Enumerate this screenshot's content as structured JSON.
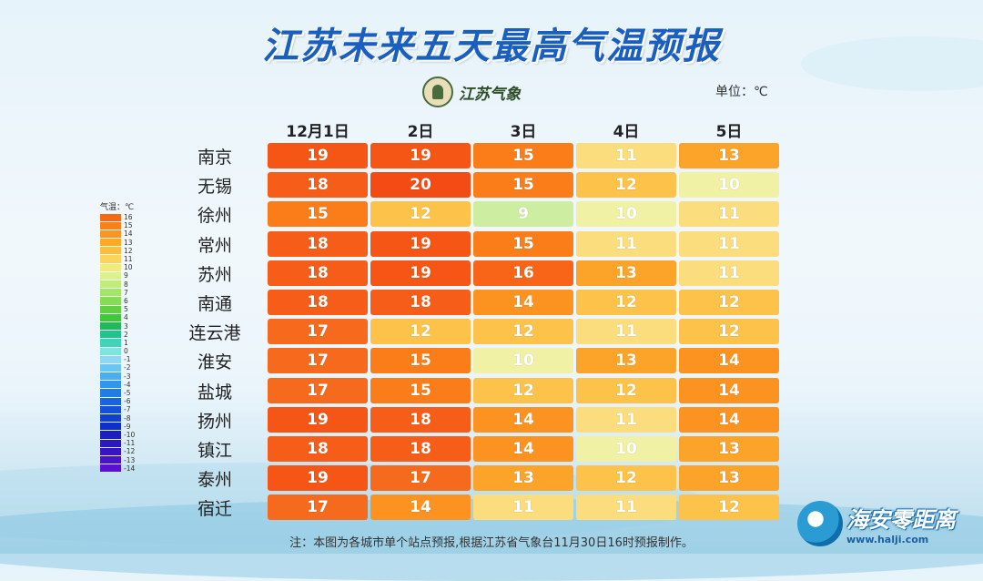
{
  "title": "江苏未来五天最高气温预报",
  "logo_text": "江苏气象",
  "unit_label": "单位：℃",
  "columns": [
    "12月1日",
    "2日",
    "3日",
    "4日",
    "5日"
  ],
  "rows": [
    {
      "city": "南京",
      "values": [
        19,
        19,
        15,
        11,
        13
      ]
    },
    {
      "city": "无锡",
      "values": [
        18,
        20,
        15,
        12,
        10
      ]
    },
    {
      "city": "徐州",
      "values": [
        15,
        12,
        9,
        10,
        11
      ]
    },
    {
      "city": "常州",
      "values": [
        18,
        19,
        15,
        11,
        11
      ]
    },
    {
      "city": "苏州",
      "values": [
        18,
        19,
        16,
        13,
        11
      ]
    },
    {
      "city": "南通",
      "values": [
        18,
        18,
        14,
        12,
        12
      ]
    },
    {
      "city": "连云港",
      "values": [
        17,
        12,
        12,
        11,
        12
      ]
    },
    {
      "city": "淮安",
      "values": [
        17,
        15,
        10,
        13,
        14
      ]
    },
    {
      "city": "盐城",
      "values": [
        17,
        15,
        12,
        12,
        14
      ]
    },
    {
      "city": "扬州",
      "values": [
        19,
        18,
        14,
        11,
        14
      ]
    },
    {
      "city": "镇江",
      "values": [
        18,
        18,
        14,
        10,
        13
      ]
    },
    {
      "city": "泰州",
      "values": [
        19,
        17,
        13,
        12,
        13
      ]
    },
    {
      "city": "宿迁",
      "values": [
        17,
        14,
        11,
        11,
        12
      ]
    }
  ],
  "color_scale": {
    "9": "#cdeea0",
    "10": "#f1f1a6",
    "11": "#fbdd7e",
    "12": "#fdc24a",
    "13": "#fca32a",
    "14": "#fc9220",
    "15": "#fa7d1a",
    "16": "#f86518",
    "17": "#f56a1d",
    "18": "#f55d18",
    "19": "#f55515",
    "20": "#f24c14"
  },
  "legend": {
    "title": "气温：℃",
    "items": [
      {
        "label": "16",
        "color": "#f56a14"
      },
      {
        "label": "15",
        "color": "#f8811c"
      },
      {
        "label": "14",
        "color": "#fa951f"
      },
      {
        "label": "13",
        "color": "#fcaa25"
      },
      {
        "label": "12",
        "color": "#fdbf3a"
      },
      {
        "label": "11",
        "color": "#fdd45a"
      },
      {
        "label": "10",
        "color": "#f1ea7c"
      },
      {
        "label": "9",
        "color": "#dcf08c"
      },
      {
        "label": "8",
        "color": "#c2ec7a"
      },
      {
        "label": "7",
        "color": "#a4e466"
      },
      {
        "label": "6",
        "color": "#86dc52"
      },
      {
        "label": "5",
        "color": "#5fd040"
      },
      {
        "label": "4",
        "color": "#3ec83a"
      },
      {
        "label": "3",
        "color": "#22b85a"
      },
      {
        "label": "2",
        "color": "#20c48a"
      },
      {
        "label": "1",
        "color": "#3fd4b8"
      },
      {
        "label": "0",
        "color": "#7fe4e0"
      },
      {
        "label": "-1",
        "color": "#8cd8f4"
      },
      {
        "label": "-2",
        "color": "#6cc4f2"
      },
      {
        "label": "-3",
        "color": "#4aaef0"
      },
      {
        "label": "-4",
        "color": "#2e96ec"
      },
      {
        "label": "-5",
        "color": "#1f7ce6"
      },
      {
        "label": "-6",
        "color": "#1864e0"
      },
      {
        "label": "-7",
        "color": "#1450d8"
      },
      {
        "label": "-8",
        "color": "#1040d0"
      },
      {
        "label": "-9",
        "color": "#0e30c8"
      },
      {
        "label": "-10",
        "color": "#1a20c0"
      },
      {
        "label": "-11",
        "color": "#2a18c0"
      },
      {
        "label": "-12",
        "color": "#3a14c4"
      },
      {
        "label": "-13",
        "color": "#4a12c8"
      },
      {
        "label": "-14",
        "color": "#5a10cc"
      }
    ]
  },
  "footnote": "注：本图为各城市单个站点预报,根据江苏省气象台11月30日16时预报制作。",
  "watermark": {
    "name": "海安零距离",
    "url": "www.halji.com"
  }
}
